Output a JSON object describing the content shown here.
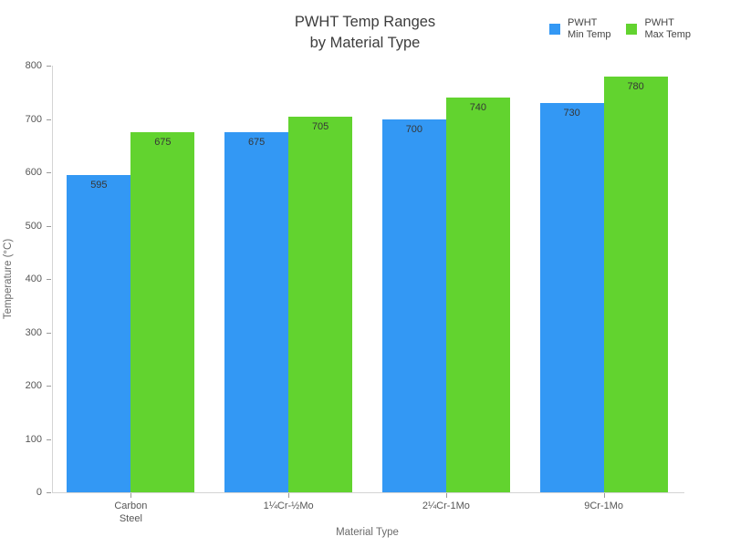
{
  "chart_data": {
    "type": "bar",
    "title": "PWHT Temp Ranges by Material Type",
    "title_lines": [
      "PWHT Temp Ranges",
      "by Material Type"
    ],
    "xlabel": "Material Type",
    "ylabel": "Temperature (°C)",
    "categories": [
      "Carbon Steel",
      "1¼Cr-½Mo",
      "2¼Cr-1Mo",
      "9Cr-1Mo"
    ],
    "category_label_lines": [
      [
        "Carbon",
        "Steel"
      ],
      [
        "1¼Cr-½Mo"
      ],
      [
        "2¼Cr-1Mo"
      ],
      [
        "9Cr-1Mo"
      ]
    ],
    "series": [
      {
        "name": "PWHT Min Temp",
        "legend_lines": [
          "PWHT",
          "Min Temp"
        ],
        "color": "#3398f4",
        "values": [
          595,
          675,
          700,
          730
        ]
      },
      {
        "name": "PWHT Max Temp",
        "legend_lines": [
          "PWHT",
          "Max Temp"
        ],
        "color": "#62d32f",
        "values": [
          675,
          705,
          740,
          780
        ]
      }
    ],
    "bar_value_labels": {
      "PWHT Min Temp": [
        "595",
        "675",
        "700",
        "730"
      ],
      "PWHT Max Temp": [
        "675",
        "705",
        "740",
        "780"
      ]
    },
    "ylim": [
      0,
      800
    ],
    "yticks": [
      "0",
      "100",
      "200",
      "300",
      "400",
      "500",
      "600",
      "700",
      "800"
    ],
    "ytick_step": 100,
    "grid": false,
    "legend_position": "top-right",
    "colors": {
      "min_temp_bar": "#3398f4",
      "max_temp_bar": "#62d32f",
      "axis_line": "#d4d4d4",
      "tick_text": "#565656",
      "title_text": "#3d3d3d",
      "axis_title_text": "#6b6b6b"
    }
  }
}
